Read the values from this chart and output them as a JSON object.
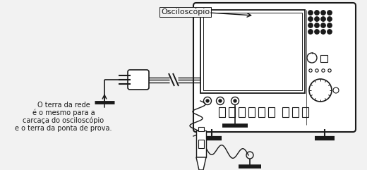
{
  "bg_color": "#f2f2f2",
  "line_color": "#1a1a1a",
  "title_label": "Osciloscópio",
  "body_text_line1": "O terra da rede",
  "body_text_line2": "é o mesmo para a",
  "body_text_line3": "carcaça do osciloscópio",
  "body_text_line4": "e o terra da ponta de prova.",
  "text_fontsize": 7.0,
  "label_fontsize": 8.0
}
